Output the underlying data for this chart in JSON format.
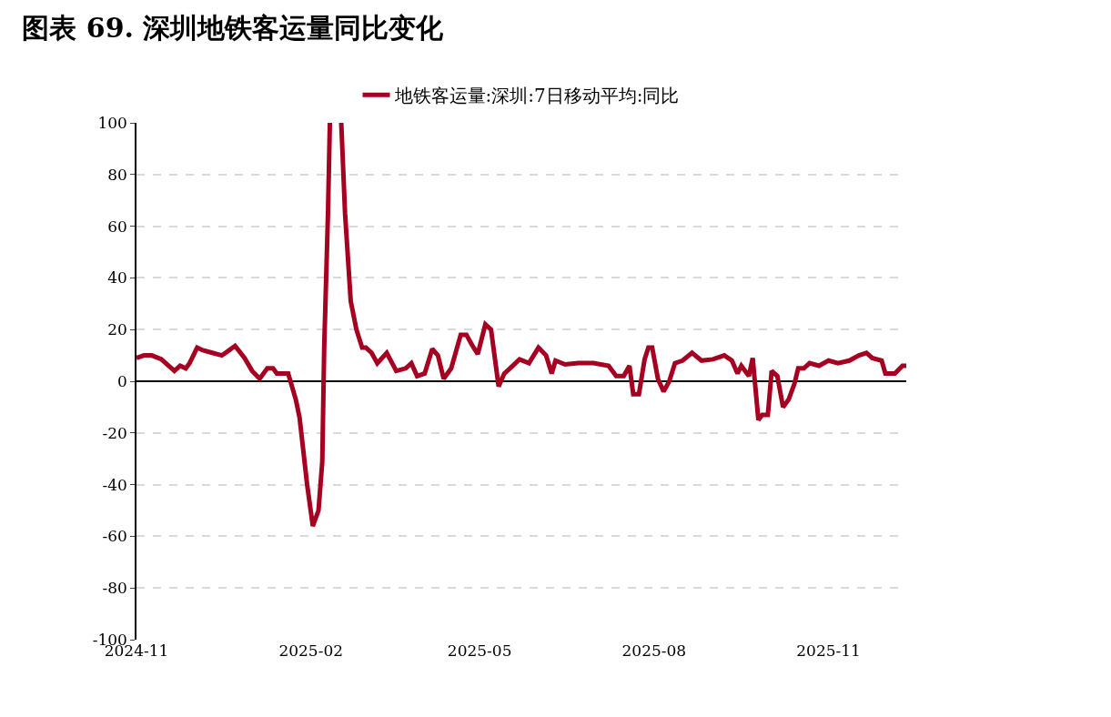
{
  "chart_data": {
    "type": "line",
    "title": "图表 69. 深圳地铁客运量同比变化",
    "x": [
      "2024-11-01",
      "2024-11-05",
      "2024-11-09",
      "2024-11-14",
      "2024-11-21",
      "2024-11-24",
      "2024-11-27",
      "2024-11-29",
      "2024-12-03",
      "2024-12-06",
      "2024-12-11",
      "2024-12-16",
      "2024-12-18",
      "2024-12-23",
      "2024-12-28",
      "2025-01-01",
      "2025-01-05",
      "2025-01-09",
      "2025-01-12",
      "2025-01-14",
      "2025-01-20",
      "2025-01-24",
      "2025-01-26",
      "2025-01-30",
      "2025-02-02",
      "2025-02-05",
      "2025-02-07",
      "2025-02-08",
      "2025-02-10",
      "2025-02-11",
      "2025-02-14",
      "2025-02-17",
      "2025-02-19",
      "2025-02-22",
      "2025-02-25",
      "2025-02-28",
      "2025-03-02",
      "2025-03-05",
      "2025-03-08",
      "2025-03-13",
      "2025-03-18",
      "2025-03-23",
      "2025-03-26",
      "2025-03-29",
      "2025-04-02",
      "2025-04-06",
      "2025-04-09",
      "2025-04-12",
      "2025-04-16",
      "2025-04-21",
      "2025-04-24",
      "2025-04-27",
      "2025-04-30",
      "2025-05-04",
      "2025-05-07",
      "2025-05-11",
      "2025-05-14",
      "2025-05-17",
      "2025-05-22",
      "2025-05-27",
      "2025-06-01",
      "2025-06-05",
      "2025-06-08",
      "2025-06-10",
      "2025-06-15",
      "2025-06-22",
      "2025-06-30",
      "2025-07-08",
      "2025-07-12",
      "2025-07-16",
      "2025-07-19",
      "2025-07-21",
      "2025-07-24",
      "2025-07-27",
      "2025-07-29",
      "2025-07-31",
      "2025-08-03",
      "2025-08-06",
      "2025-08-09",
      "2025-08-12",
      "2025-08-16",
      "2025-08-21",
      "2025-08-26",
      "2025-09-01",
      "2025-09-07",
      "2025-09-11",
      "2025-09-14",
      "2025-09-16",
      "2025-09-20",
      "2025-09-22",
      "2025-09-25",
      "2025-09-27",
      "2025-09-30",
      "2025-10-02",
      "2025-10-05",
      "2025-10-08",
      "2025-10-11",
      "2025-10-14",
      "2025-10-16",
      "2025-10-19",
      "2025-10-22",
      "2025-10-27",
      "2025-11-01",
      "2025-11-06",
      "2025-11-12",
      "2025-11-17",
      "2025-11-21",
      "2025-11-24",
      "2025-11-29",
      "2025-12-01",
      "2025-12-06",
      "2025-12-10",
      "2025-12-12"
    ],
    "series": [
      {
        "name": "地铁客运量:深圳:7日移动平均:同比",
        "color": "#a50021",
        "values": [
          9,
          10,
          10,
          8.6,
          4,
          6,
          5,
          7,
          13,
          12,
          11,
          10,
          11,
          13.7,
          9,
          4,
          1,
          5,
          5,
          3,
          3,
          -7,
          -14,
          -40,
          -56,
          -50,
          -31,
          13,
          65,
          100,
          null,
          100,
          65,
          31,
          20,
          13,
          13,
          11,
          7,
          11,
          4,
          5,
          7,
          2,
          3,
          12.5,
          10,
          1,
          5,
          18,
          18,
          14,
          10.5,
          22,
          20,
          -2,
          3,
          5,
          8.5,
          7,
          13,
          10,
          3,
          8,
          6.5,
          7,
          7,
          6,
          2,
          2,
          6,
          -5,
          -5,
          8.5,
          13,
          13,
          1,
          -4,
          0,
          7,
          8,
          11,
          8,
          8.5,
          10,
          8,
          3,
          6,
          2,
          9,
          -15,
          -13,
          -13,
          4,
          2,
          -10,
          -7,
          -1,
          5,
          5,
          7,
          6,
          8,
          7,
          8,
          10,
          11,
          9,
          8,
          3,
          3,
          6,
          6
        ]
      }
    ],
    "xlim": [
      "2024-11-01",
      "2025-12-12"
    ],
    "xticks": [
      {
        "value": "2024-11-01",
        "label": "2024-11"
      },
      {
        "value": "2025-02-01",
        "label": "2025-02"
      },
      {
        "value": "2025-05-01",
        "label": "2025-05"
      },
      {
        "value": "2025-08-01",
        "label": "2025-08"
      },
      {
        "value": "2025-11-01",
        "label": "2025-11"
      }
    ],
    "ylim": [
      -100,
      100
    ],
    "yticks": [
      -100,
      -80,
      -60,
      -40,
      -20,
      0,
      20,
      40,
      60,
      80,
      100
    ],
    "grid": "y",
    "legend": "top",
    "marker": "none",
    "line_style": "solid"
  }
}
